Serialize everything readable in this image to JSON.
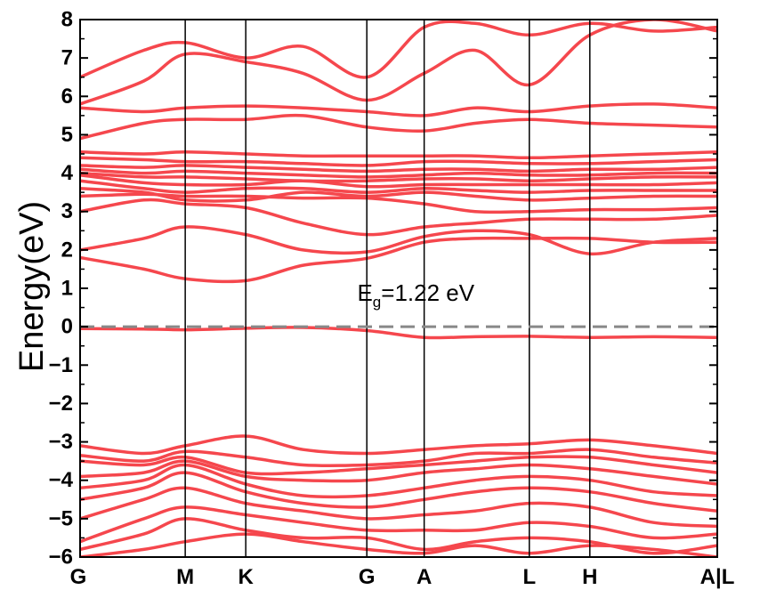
{
  "chart_data": {
    "type": "line",
    "title": "",
    "xlabel": "",
    "ylabel": "Energy(eV)",
    "ylim": [
      -6,
      8
    ],
    "yticks": [
      -6,
      -5,
      -4,
      -3,
      -2,
      -1,
      0,
      1,
      2,
      3,
      4,
      5,
      6,
      7,
      8
    ],
    "ytick_labels": [
      "−6",
      "−5",
      "−4",
      "−3",
      "−2",
      "−1",
      "0",
      "1",
      "2",
      "3",
      "4",
      "5",
      "6",
      "7",
      "8"
    ],
    "xlim": [
      0,
      10
    ],
    "k_points": [
      {
        "label": "G",
        "x": 0
      },
      {
        "label": "M",
        "x": 1.65
      },
      {
        "label": "K",
        "x": 2.6
      },
      {
        "label": "G",
        "x": 4.5
      },
      {
        "label": "A",
        "x": 5.4
      },
      {
        "label": "L",
        "x": 7.05
      },
      {
        "label": "H",
        "x": 8.0
      },
      {
        "label": "A|L",
        "x": 10
      }
    ],
    "fermi_level": 0,
    "annotation": {
      "main": "E",
      "sub": "g",
      "rest": "=1.22 eV",
      "x": 4.35,
      "y": 0.95
    },
    "series_color": "#f5474d",
    "fermi_color": "#888888",
    "x_grid": [
      0,
      1,
      1.65,
      2.6,
      3.5,
      4.5,
      5.4,
      6.2,
      7.05,
      8.0,
      9.0,
      10
    ],
    "bands": [
      [
        -6.0,
        -5.8,
        -5.6,
        -5.4,
        -5.6,
        -5.8,
        -5.9,
        -5.7,
        -5.9,
        -5.7,
        -5.8,
        -6.0
      ],
      [
        -5.8,
        -5.4,
        -5.0,
        -5.3,
        -5.5,
        -5.5,
        -5.8,
        -5.6,
        -5.5,
        -5.6,
        -5.9,
        -5.7
      ],
      [
        -5.6,
        -5.0,
        -4.7,
        -4.9,
        -5.1,
        -5.3,
        -5.3,
        -5.3,
        -5.1,
        -5.2,
        -5.5,
        -5.4
      ],
      [
        -5.0,
        -4.5,
        -4.2,
        -4.6,
        -4.8,
        -5.0,
        -4.9,
        -4.8,
        -4.6,
        -4.7,
        -5.1,
        -5.2
      ],
      [
        -4.5,
        -4.2,
        -3.8,
        -4.3,
        -4.6,
        -4.7,
        -4.5,
        -4.3,
        -4.2,
        -4.3,
        -4.6,
        -4.8
      ],
      [
        -4.2,
        -4.0,
        -3.6,
        -4.1,
        -4.4,
        -4.4,
        -4.2,
        -4.0,
        -3.9,
        -4.0,
        -4.3,
        -4.4
      ],
      [
        -3.9,
        -3.8,
        -3.5,
        -3.9,
        -4.0,
        -4.0,
        -3.8,
        -3.7,
        -3.6,
        -3.7,
        -3.9,
        -4.1
      ],
      [
        -3.5,
        -3.6,
        -3.4,
        -3.8,
        -3.8,
        -3.7,
        -3.6,
        -3.5,
        -3.4,
        -3.4,
        -3.6,
        -3.8
      ],
      [
        -3.35,
        -3.5,
        -3.25,
        -3.4,
        -3.6,
        -3.6,
        -3.5,
        -3.3,
        -3.3,
        -3.2,
        -3.4,
        -3.55
      ],
      [
        -3.1,
        -3.3,
        -3.1,
        -2.85,
        -3.2,
        -3.3,
        -3.2,
        -3.1,
        -3.05,
        -2.95,
        -3.1,
        -3.3
      ],
      [
        -0.05,
        -0.06,
        -0.08,
        -0.04,
        -0.02,
        -0.1,
        -0.28,
        -0.26,
        -0.25,
        -0.28,
        -0.26,
        -0.28
      ],
      [
        1.8,
        1.5,
        1.25,
        1.2,
        1.6,
        1.78,
        2.2,
        2.3,
        2.3,
        2.3,
        2.2,
        2.2
      ],
      [
        2.0,
        2.3,
        2.6,
        2.4,
        2.0,
        1.95,
        2.35,
        2.5,
        2.4,
        1.9,
        2.2,
        2.3
      ],
      [
        3.0,
        3.3,
        3.2,
        3.1,
        2.7,
        2.4,
        2.6,
        2.7,
        2.8,
        2.8,
        2.8,
        2.9
      ],
      [
        3.4,
        3.45,
        3.4,
        3.4,
        3.35,
        3.35,
        3.2,
        3.0,
        3.0,
        3.05,
        3.05,
        3.1
      ],
      [
        3.6,
        3.5,
        3.3,
        3.3,
        3.5,
        3.4,
        3.5,
        3.4,
        3.3,
        3.35,
        3.4,
        3.4
      ],
      [
        3.8,
        3.6,
        3.5,
        3.6,
        3.6,
        3.5,
        3.6,
        3.55,
        3.5,
        3.55,
        3.55,
        3.55
      ],
      [
        3.95,
        3.75,
        3.7,
        3.7,
        3.8,
        3.65,
        3.7,
        3.7,
        3.7,
        3.7,
        3.7,
        3.75
      ],
      [
        4.0,
        3.9,
        3.9,
        3.85,
        3.8,
        3.8,
        3.85,
        3.85,
        3.8,
        3.85,
        3.9,
        3.9
      ],
      [
        4.1,
        4.0,
        4.05,
        4.0,
        3.95,
        3.9,
        3.95,
        4.0,
        3.95,
        3.95,
        4.0,
        4.0
      ],
      [
        4.2,
        4.15,
        4.2,
        4.15,
        4.1,
        4.05,
        4.1,
        4.1,
        4.05,
        4.1,
        4.1,
        4.15
      ],
      [
        4.4,
        4.35,
        4.3,
        4.3,
        4.25,
        4.2,
        4.3,
        4.3,
        4.25,
        4.25,
        4.3,
        4.35
      ],
      [
        4.55,
        4.5,
        4.55,
        4.5,
        4.45,
        4.45,
        4.45,
        4.45,
        4.4,
        4.45,
        4.5,
        4.55
      ],
      [
        4.9,
        5.3,
        5.4,
        5.4,
        5.5,
        5.2,
        5.1,
        5.3,
        5.4,
        5.3,
        5.25,
        5.2
      ],
      [
        5.7,
        5.6,
        5.7,
        5.75,
        5.7,
        5.6,
        5.5,
        5.7,
        5.6,
        5.75,
        5.8,
        5.7
      ],
      [
        5.8,
        6.4,
        7.1,
        6.9,
        6.6,
        5.9,
        6.6,
        7.2,
        6.3,
        7.6,
        8.0,
        7.7
      ],
      [
        6.5,
        7.2,
        7.4,
        7.0,
        7.3,
        6.5,
        7.8,
        7.9,
        7.6,
        7.9,
        7.7,
        7.8
      ]
    ]
  }
}
